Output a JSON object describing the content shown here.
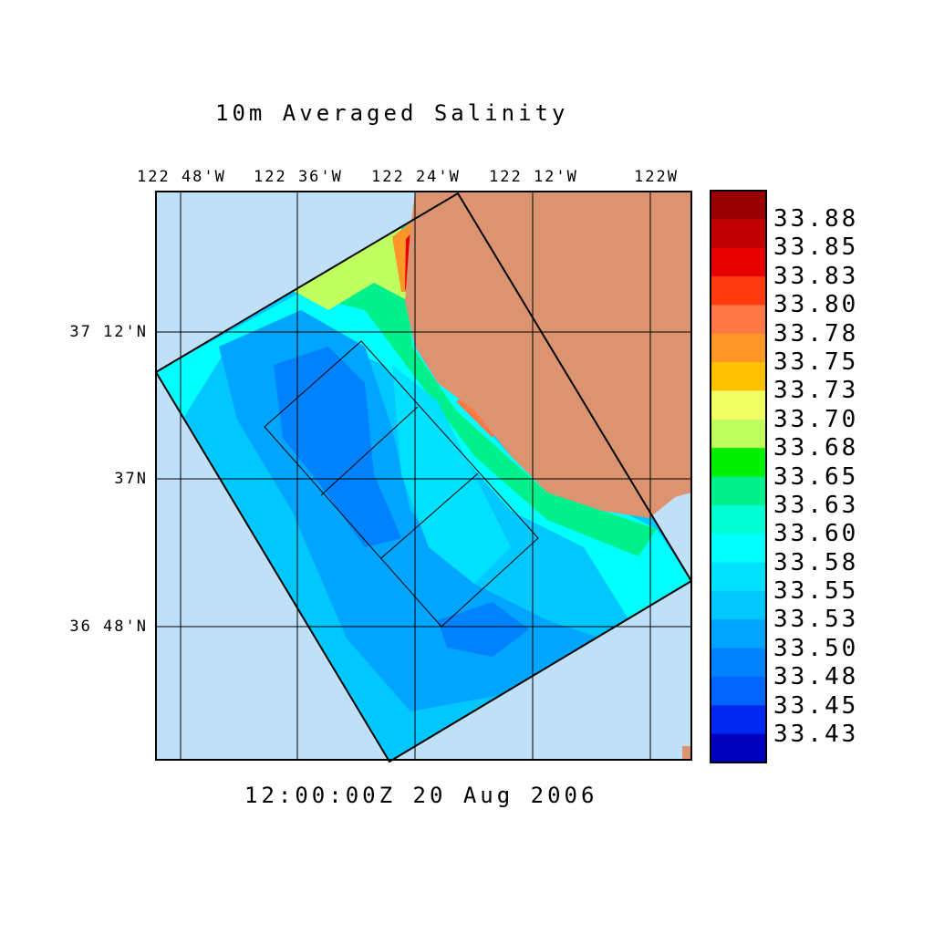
{
  "chart_data": {
    "type": "heatmap",
    "title": "10m Averaged Salinity",
    "time_label": "12:00:00Z  20 Aug 2006",
    "x_ticks": [
      "122 48'W",
      "122 36'W",
      "122 24'W",
      "122 12'W",
      "122W"
    ],
    "y_ticks": [
      "37 12'N",
      "37N",
      "36 48'N"
    ],
    "colorbar": {
      "labels": [
        "33.88",
        "33.85",
        "33.83",
        "33.80",
        "33.78",
        "33.75",
        "33.73",
        "33.70",
        "33.68",
        "33.65",
        "33.63",
        "33.60",
        "33.58",
        "33.55",
        "33.53",
        "33.50",
        "33.48",
        "33.45",
        "33.43"
      ],
      "colors": [
        "#960000",
        "#c00000",
        "#e60000",
        "#ff3c0f",
        "#ff7846",
        "#ff9628",
        "#ffc000",
        "#f0ff64",
        "#c0ff60",
        "#00f000",
        "#00f08c",
        "#00ffd2",
        "#00ffff",
        "#00e1ff",
        "#00c8ff",
        "#00a5ff",
        "#0082ff",
        "#0064ff",
        "#0028f0",
        "#0000c0"
      ]
    },
    "colors": {
      "ocean_outside": "#c0e0f8",
      "land": "#dc9470"
    }
  }
}
